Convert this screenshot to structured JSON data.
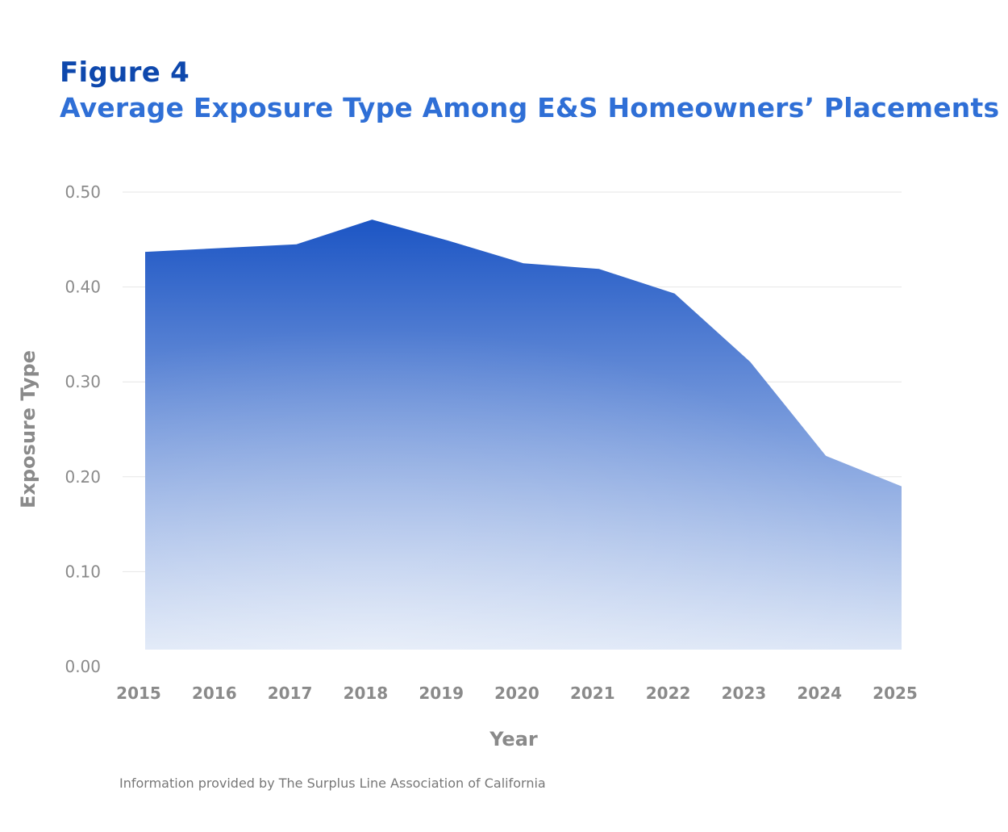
{
  "figure_label": "Figure 4",
  "title": "Average Exposure Type Among E&S Homeowners’ Placements",
  "source_note": "Information provided by The Surplus Line Association of California",
  "colors": {
    "label": "#0e48ad",
    "title": "#2f6fd6",
    "area_top": "#1c55c4",
    "area_bottom": "#dbe5f6",
    "gridline": "#e6e6e6",
    "axis_text": "#8a8a8a"
  },
  "chart_data": {
    "type": "area",
    "xlabel": "Year",
    "ylabel": "Exposure Type",
    "x": [
      "2015",
      "2016",
      "2017",
      "2018",
      "2019",
      "2020",
      "2021",
      "2022",
      "2023",
      "2024",
      "2025"
    ],
    "series": [
      {
        "values": [
          0.437,
          0.441,
          0.445,
          0.471,
          0.449,
          0.425,
          0.419,
          0.393,
          0.321,
          0.222,
          0.19
        ]
      }
    ],
    "ylim": [
      0,
      0.5
    ],
    "yticks": [
      "0.00",
      "0.10",
      "0.20",
      "0.30",
      "0.40",
      "0.50"
    ],
    "grid": true,
    "legend": "none"
  }
}
